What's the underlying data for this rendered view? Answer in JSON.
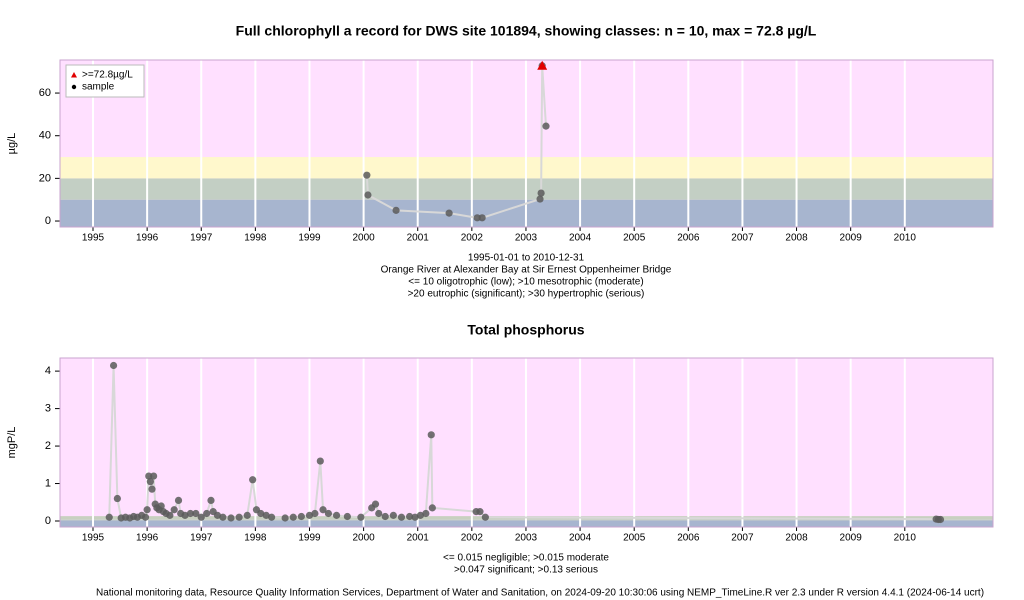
{
  "chart_data": [
    {
      "type": "line",
      "title": "Full chlorophyll a record for DWS site 101894, showing classes: n = 10, max = 72.8 µg/L",
      "ylabel": "µg/L",
      "xlim": [
        1994.39,
        2011.63
      ],
      "xticks": [
        1995,
        1996,
        1997,
        1998,
        1999,
        2000,
        2001,
        2002,
        2003,
        2004,
        2005,
        2006,
        2007,
        2008,
        2009,
        2010
      ],
      "ylim": [
        -2.8,
        75.5
      ],
      "yticks": [
        0,
        20,
        40,
        60
      ],
      "background": "#ffe0ff",
      "class_limits": [
        10,
        20,
        30
      ],
      "class_colors": [
        "#a7b5cf",
        "#c3cfc4",
        "#fff8cc"
      ],
      "grid": true,
      "legend": "top-left",
      "line_color": "#d8d8d8",
      "series": [
        {
          "name": "sample",
          "color": "#5a5a5a",
          "marker": "dot",
          "x": [
            2000.06,
            2000.08,
            2000.6,
            2001.58,
            2002.1,
            2002.19,
            2003.26,
            2003.28,
            2003.3,
            2003.37
          ],
          "values": [
            21.5,
            12.2,
            5,
            3.7,
            1.5,
            1.5,
            10.3,
            13.1,
            72.8,
            44.5
          ]
        },
        {
          "name": ">=72.8µg/L",
          "color": "#e00000",
          "marker": "triangle",
          "x": [
            2003.3
          ],
          "values": [
            72.8
          ]
        }
      ],
      "notes": [
        "1995-01-01 to 2010-12-31",
        "Orange River at Alexander Bay at Sir Ernest Oppenheimer Bridge",
        "<= 10 oligotrophic (low); >10 mesotrophic (moderate)",
        ">20 eutrophic (significant); >30 hypertrophic (serious)"
      ]
    },
    {
      "type": "line",
      "title": "Total phosphorus",
      "ylabel": "mgP/L",
      "xlim": [
        1994.39,
        2011.63
      ],
      "xticks": [
        1995,
        1996,
        1997,
        1998,
        1999,
        2000,
        2001,
        2002,
        2003,
        2004,
        2005,
        2006,
        2007,
        2008,
        2009,
        2010
      ],
      "ylim": [
        -0.16,
        4.35
      ],
      "yticks": [
        0,
        1,
        2,
        3,
        4
      ],
      "background": "#ffe0ff",
      "class_limits": [
        0.015,
        0.047,
        0.13
      ],
      "class_colors": [
        "#a7b5cf",
        "#c3cfc4",
        "#c8d0c0"
      ],
      "grid": true,
      "line_color": "#d8d8d8",
      "series": [
        {
          "color": "#5a5a5a",
          "marker": "dot",
          "x": [
            1995.3,
            1995.38,
            1995.45,
            1995.52,
            1995.6,
            1995.68,
            1995.75,
            1995.82,
            1995.9,
            1995.97,
            1996.0,
            1996.03,
            1996.06,
            1996.09,
            1996.12,
            1996.15,
            1996.18,
            1996.22,
            1996.26,
            1996.3,
            1996.35,
            1996.42,
            1996.5,
            1996.58,
            1996.62,
            1996.7,
            1996.8,
            1996.9,
            1997.0,
            1997.1,
            1997.18,
            1997.22,
            1997.3,
            1997.4,
            1997.55,
            1997.7,
            1997.85,
            1997.95,
            1998.02,
            1998.1,
            1998.2,
            1998.3,
            1998.55,
            1998.7,
            1998.85,
            1999.0,
            1999.1,
            1999.2,
            1999.25,
            1999.35,
            1999.5,
            1999.7,
            1999.95,
            2000.15,
            2000.22,
            2000.28,
            2000.4,
            2000.55,
            2000.7,
            2000.85,
            2000.95,
            2001.05,
            2001.15,
            2001.25,
            2001.27,
            2002.08,
            2002.15,
            2002.25,
            2010.58,
            2010.62,
            2010.66
          ],
          "values": [
            0.1,
            4.15,
            0.6,
            0.08,
            0.1,
            0.08,
            0.12,
            0.1,
            0.15,
            0.1,
            0.3,
            1.2,
            1.05,
            0.85,
            1.2,
            0.45,
            0.35,
            0.3,
            0.4,
            0.25,
            0.2,
            0.15,
            0.3,
            0.55,
            0.2,
            0.15,
            0.2,
            0.2,
            0.1,
            0.2,
            0.55,
            0.25,
            0.15,
            0.1,
            0.08,
            0.1,
            0.15,
            1.1,
            0.3,
            0.2,
            0.15,
            0.1,
            0.08,
            0.1,
            0.12,
            0.15,
            0.2,
            1.6,
            0.3,
            0.2,
            0.15,
            0.12,
            0.1,
            0.35,
            0.45,
            0.2,
            0.12,
            0.15,
            0.1,
            0.12,
            0.1,
            0.15,
            0.2,
            2.3,
            0.35,
            0.25,
            0.25,
            0.1,
            0.05,
            0.04,
            0.04
          ]
        }
      ],
      "notes": [
        "<= 0.015 negligible; >0.015 moderate",
        ">0.047 significant; >0.13 serious"
      ]
    }
  ],
  "footer": "National monitoring data, Resource Quality Information Services, Department of Water and Sanitation, on 2024-09-20 10:30:06 using NEMP_TimeLine.R ver 2.3 under R version 4.4.1 (2024-06-14 ucrt)"
}
